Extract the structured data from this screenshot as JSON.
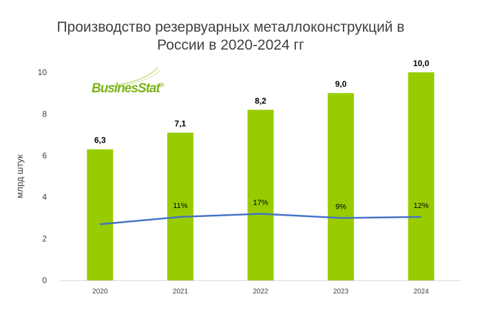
{
  "chart_data": {
    "type": "bar",
    "title_lines": [
      "Производство резервуарных металлоконструкций в",
      "России в 2020-2024 гг"
    ],
    "ylabel": "млрд штук",
    "xlabel": "",
    "categories": [
      "2020",
      "2021",
      "2022",
      "2023",
      "2024"
    ],
    "series": [
      {
        "type": "bar",
        "values": [
          6.3,
          7.1,
          8.2,
          9.0,
          10.0
        ],
        "labels": [
          "6,3",
          "7,1",
          "8,2",
          "9,0",
          "10,0"
        ],
        "color": "#99cc00"
      },
      {
        "type": "line",
        "values": [
          2.7,
          3.05,
          3.2,
          3.0,
          3.05
        ],
        "labels": [
          "",
          "11%",
          "17%",
          "9%",
          "12%"
        ],
        "color": "#4472c4"
      }
    ],
    "ylim": [
      0,
      10
    ],
    "yticks": [
      "0",
      "2",
      "4",
      "6",
      "8",
      "10"
    ],
    "grid": false,
    "legend": "none"
  },
  "logo": {
    "text": "BusinesStat",
    "mark": "®",
    "color": "#7ab317"
  }
}
